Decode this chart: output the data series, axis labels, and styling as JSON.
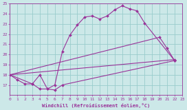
{
  "xlabel": "Windchill (Refroidissement éolien,°C)",
  "bg_color": "#cce8e8",
  "grid_color": "#99cccc",
  "line_color": "#993399",
  "xmin": 0,
  "xmax": 23,
  "ymin": 16,
  "ymax": 25,
  "series": [
    {
      "x": [
        0,
        1,
        2,
        3,
        4,
        5,
        6,
        7,
        8,
        9,
        10,
        11,
        12,
        13,
        14,
        15,
        16,
        17,
        18,
        22
      ],
      "y": [
        18.0,
        17.5,
        17.1,
        17.1,
        16.6,
        16.6,
        17.0,
        20.3,
        21.9,
        22.9,
        23.7,
        23.8,
        23.5,
        23.8,
        24.4,
        24.8,
        24.5,
        24.3,
        23.1,
        19.4
      ]
    },
    {
      "x": [
        0,
        3,
        4,
        5,
        6,
        7,
        22
      ],
      "y": [
        18.0,
        17.1,
        18.0,
        16.6,
        16.5,
        17.0,
        19.4
      ]
    },
    {
      "x": [
        0,
        22
      ],
      "y": [
        18.0,
        19.5
      ]
    },
    {
      "x": [
        0,
        20,
        21,
        22
      ],
      "y": [
        18.0,
        21.7,
        20.6,
        19.4
      ]
    }
  ]
}
